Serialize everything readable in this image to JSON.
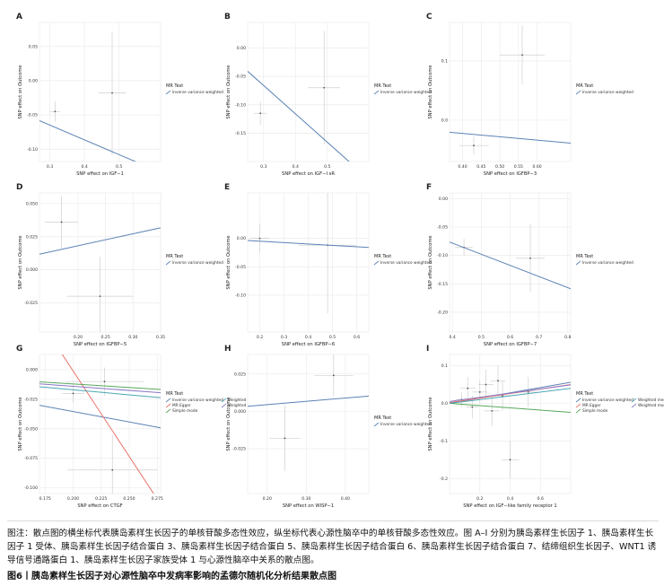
{
  "caption": "图注：散点图的横坐标代表胰岛素样生长因子的单核苷酸多态性效应，纵坐标代表心源性脑卒中的单核苷酸多态性效应。图 A–I 分别为胰岛素样生长因子 1、胰岛素样生长因子 1 受体、胰岛素样生长因子结合蛋白 3、胰岛素样生长因子结合蛋白 5、胰岛素样生长因子结合蛋白 6、胰岛素样生长因子结合蛋白 7、结缔组织生长因子、WNT1 诱导信号通路蛋白 1、胰岛素样生长因子家族受体 1 与心源性脑卒中关系的散点图。",
  "figure_title": "图6丨胰岛素样生长因子对心源性脑卒中发病率影响的孟德尔随机化分析结果散点图",
  "colors": {
    "ivw": "#5b82b4",
    "egger": "#e8736a",
    "simple": "#57a85a",
    "wmedian": "#4aa6b4",
    "wmode": "#8b79c6",
    "point": "#555555",
    "errbar": "#cfcfcf"
  },
  "chart_data": [
    {
      "panel": "A",
      "type": "scatter",
      "xlabel": "SNP effect on IGF−1",
      "ylabel": "SNP effect on Outcome",
      "xlim": [
        0.27,
        0.62
      ],
      "ylim": [
        -0.118,
        0.085
      ],
      "xticks": [
        0.3,
        0.4,
        0.5
      ],
      "yticks": [
        0.05,
        0.0,
        -0.05,
        -0.1
      ],
      "ytick_labels": [
        "0.05",
        "0.00",
        "-0.05",
        "-0.10"
      ],
      "xtick_labels": [
        "0.3",
        "0.4",
        "0.5"
      ],
      "points": [
        {
          "x": 0.315,
          "y": -0.045,
          "xerr": 0.015,
          "yerr": 0.015
        },
        {
          "x": 0.48,
          "y": -0.018,
          "xerr": 0.04,
          "yerr": 0.09
        }
      ],
      "legend_title": "MR Test",
      "legend": [
        {
          "name": "Inverse variance weighted",
          "color": "ivw"
        }
      ],
      "lines": [
        {
          "color": "ivw",
          "slope": -0.2159,
          "intercept": 0
        }
      ]
    },
    {
      "panel": "B",
      "type": "scatter",
      "xlabel": "SNP effect on IGF−I sR",
      "ylabel": "SNP effect on Outcome",
      "xlim": [
        0.25,
        0.63
      ],
      "ylim": [
        -0.2,
        0.045
      ],
      "xticks": [
        0.3,
        0.4,
        0.5
      ],
      "yticks": [
        0.0,
        -0.05,
        -0.1,
        -0.15
      ],
      "ytick_labels": [
        "0.00",
        "-0.05",
        "-0.10",
        "-0.15"
      ],
      "xtick_labels": [
        "0.3",
        "0.4",
        "0.5"
      ],
      "points": [
        {
          "x": 0.29,
          "y": -0.115,
          "xerr": 0.02,
          "yerr": 0.02
        },
        {
          "x": 0.49,
          "y": -0.07,
          "xerr": 0.05,
          "yerr": 0.1
        }
      ],
      "legend_title": "MR Test",
      "legend": [
        {
          "name": "Inverse variance weighted",
          "color": "ivw"
        }
      ],
      "lines": [
        {
          "color": "ivw",
          "slope": -0.5,
          "intercept": 0.084,
          "clip": true
        }
      ]
    },
    {
      "panel": "C",
      "type": "scatter",
      "xlabel": "SNP effect on IGFBP−3",
      "ylabel": "SNP effect on Outcome",
      "xlim": [
        0.365,
        0.69
      ],
      "ylim": [
        -0.07,
        0.165
      ],
      "xticks": [
        0.4,
        0.45,
        0.5,
        0.55,
        0.6
      ],
      "yticks": [
        0.1,
        0.0
      ],
      "ytick_labels": [
        "0.1",
        "0.0"
      ],
      "xtick_labels": [
        "0.40",
        "0.45",
        "0.50",
        "0.55",
        "0.60"
      ],
      "points": [
        {
          "x": 0.43,
          "y": -0.043,
          "xerr": 0.04,
          "yerr": 0.015
        },
        {
          "x": 0.56,
          "y": 0.11,
          "xerr": 0.06,
          "yerr": 0.05
        }
      ],
      "legend_title": "MR Test",
      "legend": [
        {
          "name": "Inverse variance weighted",
          "color": "ivw"
        }
      ],
      "lines": [
        {
          "color": "ivw",
          "slope": -0.0565,
          "intercept": 0
        }
      ]
    },
    {
      "panel": "D",
      "type": "scatter",
      "xlabel": "SNP effect on IGFBP−5",
      "ylabel": "SNP effect on Outcome",
      "xlim": [
        0.13,
        0.35
      ],
      "ylim": [
        -0.047,
        0.058
      ],
      "xticks": [
        0.2,
        0.25,
        0.3,
        0.35
      ],
      "yticks": [
        0.05,
        0.025,
        0.0,
        -0.025
      ],
      "ytick_labels": [
        "0.050",
        "0.025",
        "0.000",
        "-0.025"
      ],
      "xtick_labels": [
        "0.20",
        "0.25",
        "0.30",
        "0.35"
      ],
      "points": [
        {
          "x": 0.17,
          "y": 0.036,
          "xerr": 0.03,
          "yerr": 0.02
        },
        {
          "x": 0.24,
          "y": -0.02,
          "xerr": 0.06,
          "yerr": 0.03
        }
      ],
      "legend_title": "MR Test",
      "legend": [
        {
          "name": "Inverse variance weighted",
          "color": "ivw"
        }
      ],
      "lines": [
        {
          "color": "ivw",
          "slope": 0.0906,
          "intercept": 0
        }
      ]
    },
    {
      "panel": "E",
      "type": "scatter",
      "xlabel": "SNP effect on IGFBP−6",
      "ylabel": "SNP effect on Outcome",
      "xlim": [
        0.15,
        0.65
      ],
      "ylim": [
        -0.165,
        0.08
      ],
      "xticks": [
        0.2,
        0.3,
        0.4,
        0.5,
        0.6
      ],
      "yticks": [
        0.0,
        -0.05,
        -0.1
      ],
      "ytick_labels": [
        "0.00",
        "-0.05",
        "-0.10"
      ],
      "xtick_labels": [
        "0.2",
        "0.3",
        "0.4",
        "0.5",
        "0.6"
      ],
      "points": [
        {
          "x": 0.2,
          "y": 0.0,
          "xerr": 0.04,
          "yerr": 0.025
        },
        {
          "x": 0.48,
          "y": -0.012,
          "xerr": 0.12,
          "yerr": 0.12
        }
      ],
      "legend_title": "MR Test",
      "legend": [
        {
          "name": "Inverse variance weighted",
          "color": "ivw"
        }
      ],
      "lines": [
        {
          "color": "ivw",
          "slope": -0.0247,
          "intercept": 0
        }
      ]
    },
    {
      "panel": "F",
      "type": "scatter",
      "xlabel": "SNP effect on IGFBP−7",
      "ylabel": "SNP effect on Outcome",
      "xlim": [
        0.39,
        0.81
      ],
      "ylim": [
        -0.235,
        0.01
      ],
      "xticks": [
        0.4,
        0.5,
        0.6,
        0.7,
        0.8
      ],
      "yticks": [
        0.0,
        -0.05,
        -0.1,
        -0.15,
        -0.2
      ],
      "ytick_labels": [
        "0.00",
        "-0.05",
        "-0.10",
        "-0.15",
        "-0.20"
      ],
      "xtick_labels": [
        "0.4",
        "0.5",
        "0.6",
        "0.7",
        "0.8"
      ],
      "points": [
        {
          "x": 0.44,
          "y": -0.086,
          "xerr": 0.03,
          "yerr": 0.015
        },
        {
          "x": 0.67,
          "y": -0.105,
          "xerr": 0.05,
          "yerr": 0.06
        }
      ],
      "legend_title": "MR Test",
      "legend": [
        {
          "name": "Inverse variance weighted",
          "color": "ivw"
        }
      ],
      "lines": [
        {
          "color": "ivw",
          "slope": -0.196,
          "intercept": 0
        }
      ]
    },
    {
      "panel": "G",
      "type": "scatter",
      "xlabel": "SNP effect on CTGF",
      "ylabel": "SNP effect on Outcome",
      "xlim": [
        0.17,
        0.278
      ],
      "ylim": [
        -0.105,
        0.013
      ],
      "xticks": [
        0.175,
        0.2,
        0.225,
        0.25,
        0.275
      ],
      "yticks": [
        0.0,
        -0.025,
        -0.05,
        -0.075,
        -0.1
      ],
      "ytick_labels": [
        "0.000",
        "-0.025",
        "-0.050",
        "-0.075",
        "-0.100"
      ],
      "xtick_labels": [
        "0.175",
        "0.200",
        "0.225",
        "0.250",
        "0.275"
      ],
      "points": [
        {
          "x": 0.2,
          "y": -0.02,
          "xerr": 0.01,
          "yerr": 0.008
        },
        {
          "x": 0.228,
          "y": -0.01,
          "xerr": 0.035,
          "yerr": 0.012
        },
        {
          "x": 0.235,
          "y": -0.085,
          "xerr": 0.04,
          "yerr": 0.03
        }
      ],
      "legend_title": "MR Test",
      "legend": [
        {
          "name": "Inverse variance weighted",
          "color": "ivw"
        },
        {
          "name": "MR Egger",
          "color": "egger"
        },
        {
          "name": "Simple mode",
          "color": "simple"
        },
        {
          "name": "Weighted median",
          "color": "wmedian"
        },
        {
          "name": "Weighted mode",
          "color": "wmode"
        }
      ],
      "lines": [
        {
          "color": "ivw",
          "slope": -0.177,
          "intercept": 0
        },
        {
          "color": "egger",
          "slope": -1.45,
          "intercept": 0.289
        },
        {
          "color": "simple",
          "slope": -0.06,
          "intercept": 0
        },
        {
          "color": "wmedian",
          "slope": -0.085,
          "intercept": 0
        },
        {
          "color": "wmode",
          "slope": -0.07,
          "intercept": 0
        }
      ]
    },
    {
      "panel": "H",
      "type": "scatter",
      "xlabel": "SNP effect on WISP−1",
      "ylabel": "SNP effect on Outcome",
      "xlim": [
        0.15,
        0.46
      ],
      "ylim": [
        -0.055,
        0.038
      ],
      "xticks": [
        0.2,
        0.3,
        0.4
      ],
      "yticks": [
        0.025,
        0.0,
        -0.025
      ],
      "ytick_labels": [
        "0.025",
        "0.000",
        "-0.025"
      ],
      "xtick_labels": [
        "0.20",
        "0.30",
        "0.40"
      ],
      "points": [
        {
          "x": 0.245,
          "y": -0.018,
          "xerr": 0.04,
          "yerr": 0.022
        },
        {
          "x": 0.37,
          "y": 0.024,
          "xerr": 0.05,
          "yerr": 0.014
        }
      ],
      "legend_title": "MR Test",
      "legend": [
        {
          "name": "Inverse variance weighted",
          "color": "ivw"
        }
      ],
      "lines": [
        {
          "color": "ivw",
          "slope": 0.0222,
          "intercept": 0
        }
      ]
    },
    {
      "panel": "I",
      "type": "scatter",
      "xlabel": "SNP effect on IGF−like family receptor 1",
      "ylabel": "SNP effect on Outcome",
      "xlim": [
        0.0,
        0.8
      ],
      "ylim": [
        -0.24,
        0.13
      ],
      "xticks": [
        0.2,
        0.4,
        0.6
      ],
      "yticks": [
        0.1,
        0.0,
        -0.1,
        -0.2
      ],
      "ytick_labels": [
        "0.1",
        "0.0",
        "-0.1",
        "-0.2"
      ],
      "xtick_labels": [
        "0.2",
        "0.4",
        "0.6"
      ],
      "points": [
        {
          "x": 0.08,
          "y": 0.01,
          "xerr": 0.04,
          "yerr": 0.02
        },
        {
          "x": 0.12,
          "y": 0.04,
          "xerr": 0.05,
          "yerr": 0.03
        },
        {
          "x": 0.15,
          "y": -0.01,
          "xerr": 0.04,
          "yerr": 0.03
        },
        {
          "x": 0.2,
          "y": 0.03,
          "xerr": 0.05,
          "yerr": 0.03
        },
        {
          "x": 0.24,
          "y": 0.05,
          "xerr": 0.05,
          "yerr": 0.04
        },
        {
          "x": 0.28,
          "y": -0.02,
          "xerr": 0.05,
          "yerr": 0.04
        },
        {
          "x": 0.32,
          "y": 0.06,
          "xerr": 0.05,
          "yerr": 0.04
        },
        {
          "x": 0.35,
          "y": 0.02,
          "xerr": 0.06,
          "yerr": 0.04
        },
        {
          "x": 0.4,
          "y": -0.15,
          "xerr": 0.06,
          "yerr": 0.05
        },
        {
          "x": 0.52,
          "y": 0.03,
          "xerr": 0.06,
          "yerr": 0.04
        }
      ],
      "legend_title": "MR Test",
      "legend": [
        {
          "name": "Inverse variance weighted",
          "color": "ivw"
        },
        {
          "name": "MR Egger",
          "color": "egger"
        },
        {
          "name": "Simple mode",
          "color": "simple"
        },
        {
          "name": "Weighted median",
          "color": "wmedian"
        },
        {
          "name": "Weighted mode",
          "color": "wmode"
        }
      ],
      "lines": [
        {
          "color": "ivw",
          "slope": 0.07,
          "intercept": 0
        },
        {
          "color": "egger",
          "slope": 0.06,
          "intercept": 0.002
        },
        {
          "color": "simple",
          "slope": -0.03,
          "intercept": 0
        },
        {
          "color": "wmedian",
          "slope": 0.05,
          "intercept": 0
        },
        {
          "color": "wmode",
          "slope": 0.055,
          "intercept": 0.005
        }
      ]
    }
  ]
}
